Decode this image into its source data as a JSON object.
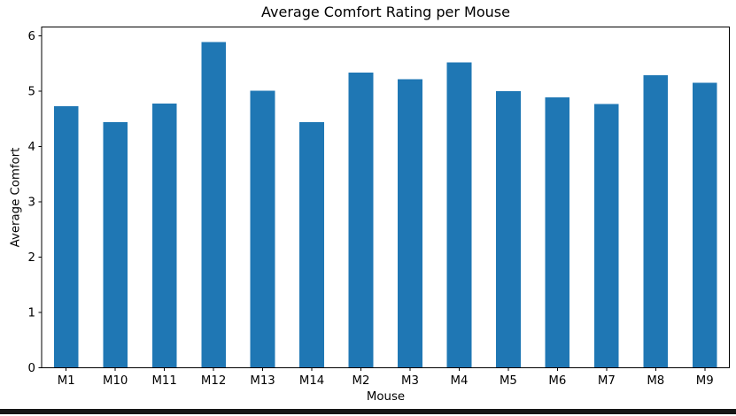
{
  "chart_data": {
    "type": "bar",
    "title": "Average Comfort Rating per Mouse",
    "xlabel": "Mouse",
    "ylabel": "Average Comfort",
    "categories": [
      "M1",
      "M10",
      "M11",
      "M12",
      "M13",
      "M14",
      "M2",
      "M3",
      "M4",
      "M5",
      "M6",
      "M7",
      "M8",
      "M9"
    ],
    "values": [
      4.73,
      4.44,
      4.78,
      5.89,
      5.01,
      4.44,
      5.34,
      5.22,
      5.52,
      5.0,
      4.89,
      4.77,
      5.29,
      5.15
    ],
    "ylim": [
      0,
      6.16
    ],
    "yticks": [
      "0",
      "1",
      "2",
      "3",
      "4",
      "5",
      "6"
    ],
    "bar_color": "#1f77b4",
    "axis_color": "#000000",
    "text_color": "#000000",
    "background": "#ffffff",
    "grid": false,
    "legend": false
  },
  "window": {
    "bottom_border_color": "#161616"
  }
}
